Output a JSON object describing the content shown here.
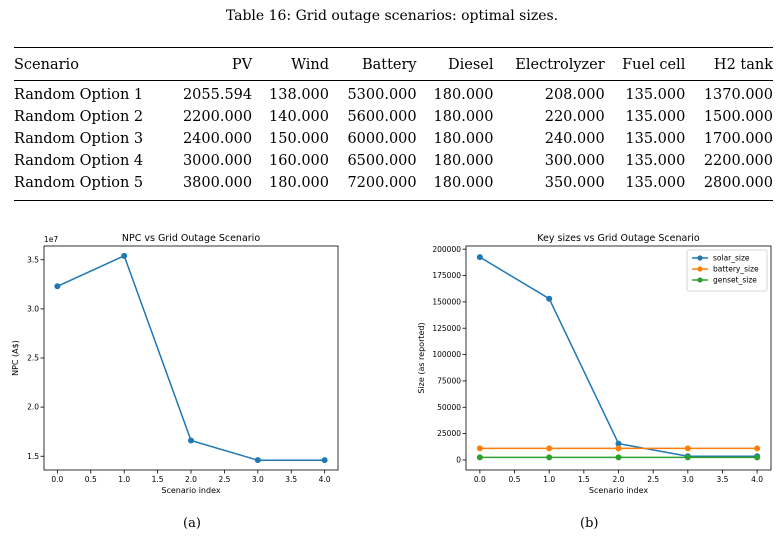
{
  "caption": "Table 16: Grid outage scenarios: optimal sizes.",
  "table": {
    "headers": [
      "Scenario",
      "PV",
      "Wind",
      "Battery",
      "Diesel",
      "Electrolyzer",
      "Fuel cell",
      "H2 tank"
    ],
    "rows": [
      [
        "Random Option 1",
        "2055.594",
        "138.000",
        "5300.000",
        "180.000",
        "208.000",
        "135.000",
        "1370.000"
      ],
      [
        "Random Option 2",
        "2200.000",
        "140.000",
        "5600.000",
        "180.000",
        "220.000",
        "135.000",
        "1500.000"
      ],
      [
        "Random Option 3",
        "2400.000",
        "150.000",
        "6000.000",
        "180.000",
        "240.000",
        "135.000",
        "1700.000"
      ],
      [
        "Random Option 4",
        "3000.000",
        "160.000",
        "6500.000",
        "180.000",
        "300.000",
        "135.000",
        "2200.000"
      ],
      [
        "Random Option 5",
        "3800.000",
        "180.000",
        "7200.000",
        "180.000",
        "350.000",
        "135.000",
        "2800.000"
      ]
    ]
  },
  "chart_data": [
    {
      "type": "line",
      "title": "NPC vs Grid Outage Scenario",
      "xlabel": "Scenario index",
      "ylabel": "NPC (A$)",
      "offset_label": "1e7",
      "xlim": [
        -0.2,
        4.2
      ],
      "ylim": [
        1.36,
        3.64
      ],
      "xticks": [
        "0.0",
        "0.5",
        "1.0",
        "1.5",
        "2.0",
        "2.5",
        "3.0",
        "3.5",
        "4.0"
      ],
      "yticks": [
        "1.5",
        "2.0",
        "2.5",
        "3.0",
        "3.5"
      ],
      "series": [
        {
          "x": [
            0,
            1,
            2,
            3,
            4
          ],
          "values": [
            3.23,
            3.54,
            1.66,
            1.46,
            1.46
          ],
          "color": "#1f77b4"
        }
      ],
      "grid": false,
      "subcaption": "(a)"
    },
    {
      "type": "line",
      "title": "Key sizes vs Grid Outage Scenario",
      "xlabel": "Scenario index",
      "ylabel": "Size (as reported)",
      "xlim": [
        -0.2,
        4.2
      ],
      "ylim": [
        -9500,
        203000
      ],
      "xticks": [
        "0.0",
        "0.5",
        "1.0",
        "1.5",
        "2.0",
        "2.5",
        "3.0",
        "3.5",
        "4.0"
      ],
      "yticks": [
        "0",
        "25000",
        "50000",
        "75000",
        "100000",
        "125000",
        "150000",
        "175000",
        "200000"
      ],
      "series": [
        {
          "name": "solar_size",
          "x": [
            0,
            1,
            2,
            3,
            4
          ],
          "values": [
            192500,
            153000,
            15500,
            3500,
            3500
          ],
          "color": "#1f77b4"
        },
        {
          "name": "battery_size",
          "x": [
            0,
            1,
            2,
            3,
            4
          ],
          "values": [
            11000,
            11000,
            11000,
            11000,
            11000
          ],
          "color": "#ff7f0e"
        },
        {
          "name": "genset_size",
          "x": [
            0,
            1,
            2,
            3,
            4
          ],
          "values": [
            2500,
            2500,
            2500,
            2500,
            2500
          ],
          "color": "#2ca02c"
        }
      ],
      "legend": "top-right",
      "grid": false,
      "subcaption": "(b)"
    }
  ]
}
